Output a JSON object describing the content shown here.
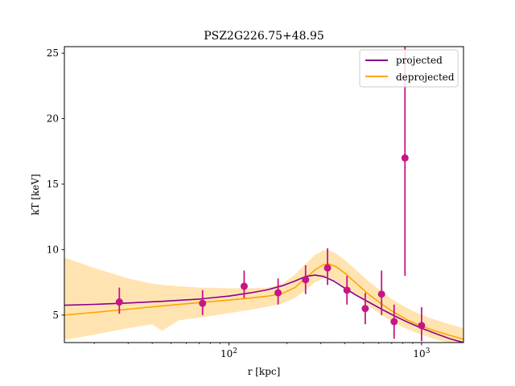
{
  "chart_data": {
    "type": "scatter",
    "title": "PSZ2G226.75+48.95",
    "xlabel": "r [kpc]",
    "ylabel": "kT [keV]",
    "xscale": "log",
    "xlim": [
      14,
      1650
    ],
    "ylim": [
      2.9,
      25.5
    ],
    "x_ticks": [
      {
        "value": 100,
        "base": "10",
        "exp": "2"
      },
      {
        "value": 1000,
        "base": "10",
        "exp": "3"
      }
    ],
    "y_ticks": [
      {
        "value": 5,
        "label": "5"
      },
      {
        "value": 10,
        "label": "10"
      },
      {
        "value": 15,
        "label": "15"
      },
      {
        "value": 20,
        "label": "20"
      },
      {
        "value": 25,
        "label": "25"
      }
    ],
    "legend_position": "top-right",
    "colors": {
      "projected": "#8b008b",
      "deprojected": "#ffa500",
      "band": "#ffa500",
      "points": "#c71585"
    },
    "series": [
      {
        "name": "projected",
        "type": "line",
        "x": [
          14,
          20,
          30,
          45,
          70,
          100,
          130,
          160,
          190,
          220,
          250,
          280,
          310,
          350,
          400,
          460,
          530,
          620,
          720,
          850,
          1000,
          1200,
          1400,
          1650
        ],
        "y": [
          5.75,
          5.82,
          5.92,
          6.05,
          6.22,
          6.45,
          6.7,
          6.95,
          7.25,
          7.6,
          7.95,
          8.05,
          7.95,
          7.6,
          7.05,
          6.5,
          6.0,
          5.45,
          4.95,
          4.45,
          4.0,
          3.55,
          3.2,
          2.9
        ]
      },
      {
        "name": "deprojected",
        "type": "line",
        "x": [
          14,
          20,
          30,
          45,
          70,
          100,
          130,
          160,
          190,
          220,
          250,
          280,
          310,
          330,
          360,
          400,
          460,
          530,
          620,
          720,
          850,
          1000,
          1200,
          1400,
          1650
        ],
        "y": [
          5.0,
          5.2,
          5.45,
          5.7,
          5.95,
          6.15,
          6.3,
          6.45,
          6.65,
          7.1,
          7.8,
          8.45,
          8.85,
          8.9,
          8.7,
          8.2,
          7.4,
          6.6,
          5.85,
          5.2,
          4.6,
          4.15,
          3.75,
          3.45,
          3.15
        ]
      },
      {
        "name": "deprojected-band",
        "type": "area",
        "x": [
          14,
          20,
          30,
          40,
          45,
          55,
          70,
          100,
          130,
          160,
          190,
          220,
          250,
          280,
          310,
          330,
          360,
          400,
          460,
          530,
          620,
          720,
          850,
          1000,
          1200,
          1400,
          1650
        ],
        "upper": [
          9.4,
          8.6,
          7.8,
          7.4,
          7.3,
          7.2,
          7.1,
          7.05,
          7.05,
          7.1,
          7.4,
          8.1,
          8.9,
          9.6,
          9.95,
          9.95,
          9.7,
          9.2,
          8.4,
          7.6,
          6.8,
          6.1,
          5.5,
          5.0,
          4.6,
          4.3,
          4.0
        ],
        "lower": [
          3.1,
          3.5,
          4.0,
          4.3,
          3.8,
          4.6,
          4.8,
          5.15,
          5.4,
          5.65,
          5.9,
          6.3,
          6.9,
          7.5,
          7.8,
          7.85,
          7.6,
          7.1,
          6.5,
          5.7,
          5.0,
          4.4,
          3.9,
          3.5,
          3.1,
          2.9,
          2.9
        ]
      },
      {
        "name": "data",
        "type": "errorbar",
        "x": [
          27,
          73,
          120,
          180,
          250,
          325,
          410,
          510,
          620,
          720,
          820,
          1000
        ],
        "y": [
          6.0,
          5.9,
          7.2,
          6.7,
          7.7,
          8.6,
          6.9,
          5.5,
          6.6,
          4.5,
          17.0,
          4.2
        ],
        "yerr_low": [
          0.9,
          0.9,
          0.9,
          0.9,
          1.1,
          1.3,
          1.1,
          1.2,
          1.6,
          1.3,
          9.0,
          1.2
        ],
        "yerr_high": [
          1.1,
          1.0,
          1.2,
          1.1,
          1.1,
          1.5,
          1.1,
          1.2,
          1.8,
          1.3,
          8.5,
          1.4
        ]
      }
    ]
  }
}
